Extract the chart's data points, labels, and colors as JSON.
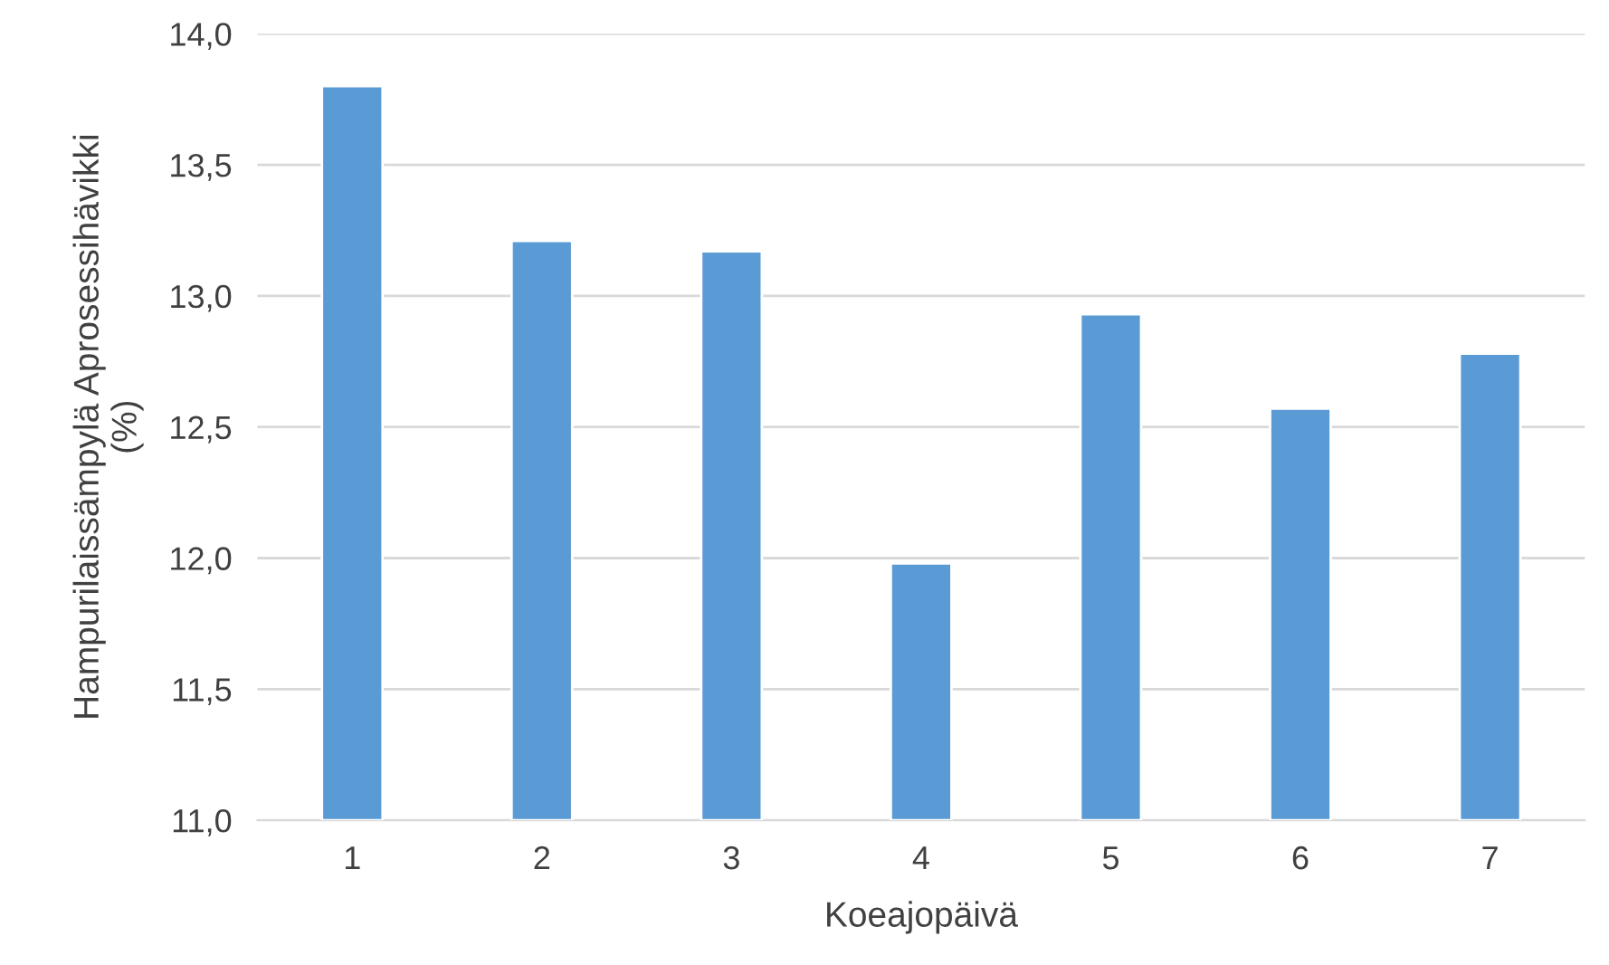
{
  "chart_data": {
    "type": "bar",
    "xlabel": "Koeajopäivä",
    "ylabel": "Hampurilaissämpylä Aprosessihävikki\n(%)",
    "categories": [
      "1",
      "2",
      "3",
      "4",
      "5",
      "6",
      "7"
    ],
    "values": [
      13.8,
      13.21,
      13.17,
      11.98,
      12.93,
      12.57,
      12.78
    ],
    "color": "#5b9bd5",
    "ylim": [
      11,
      14
    ],
    "yticks": [
      {
        "value": 11,
        "label": "11,0"
      },
      {
        "value": 11.5,
        "label": "11,5"
      },
      {
        "value": 12,
        "label": "12,0"
      },
      {
        "value": 12.5,
        "label": "12,5"
      },
      {
        "value": 13,
        "label": "13,0"
      },
      {
        "value": 13.5,
        "label": "13,5"
      },
      {
        "value": 14,
        "label": "14,0"
      }
    ],
    "grid": "y"
  }
}
